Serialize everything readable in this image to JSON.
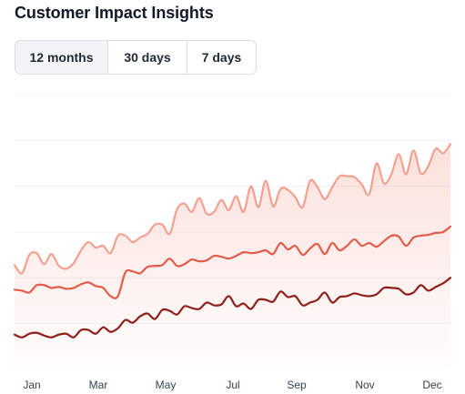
{
  "title": "Customer Impact Insights",
  "range_buttons": [
    {
      "label": "12 months",
      "active": true
    },
    {
      "label": "30 days",
      "active": false
    },
    {
      "label": "7 days",
      "active": false
    }
  ],
  "chart_data": {
    "type": "line",
    "grid": true,
    "legend": "none",
    "x_ticks": [
      "Jan",
      "Mar",
      "May",
      "Jul",
      "Sep",
      "Nov",
      "Dec"
    ],
    "ylim": [
      0,
      30
    ],
    "series": [
      {
        "color": "#f4a090",
        "fill": true,
        "values": [
          11.4,
          10.5,
          12.5,
          12.7,
          11.5,
          12.6,
          11.3,
          11.0,
          11.6,
          13.0,
          13.9,
          13.3,
          13.5,
          12.7,
          14.6,
          14.6,
          13.9,
          14.4,
          14.8,
          15.8,
          15.8,
          14.8,
          17.5,
          18.1,
          17.2,
          18.7,
          17.0,
          17.2,
          18.5,
          17.4,
          18.9,
          17.2,
          20.0,
          17.7,
          20.6,
          17.8,
          19.7,
          19.6,
          18.8,
          17.7,
          20.6,
          19.9,
          18.6,
          19.9,
          21.1,
          21.1,
          21.0,
          20.2,
          19.1,
          22.5,
          20.3,
          21.3,
          23.5,
          21.3,
          23.9,
          21.4,
          22.2,
          24.1,
          23.6,
          24.6
        ]
      },
      {
        "color": "#e25b4b",
        "fill": false,
        "values": [
          8.7,
          8.6,
          8.4,
          9.2,
          9.2,
          8.9,
          9.0,
          8.8,
          8.9,
          9.3,
          9.5,
          9.1,
          8.9,
          8.0,
          8.0,
          10.6,
          10.7,
          10.5,
          11.2,
          11.3,
          11.4,
          12.1,
          11.3,
          11.5,
          12.0,
          11.8,
          11.9,
          12.4,
          12.3,
          12.1,
          12.4,
          12.8,
          12.7,
          12.8,
          13.0,
          12.6,
          13.8,
          13.1,
          13.5,
          12.5,
          13.2,
          13.7,
          12.6,
          13.8,
          13.0,
          13.5,
          14.2,
          13.5,
          13.8,
          13.4,
          14.0,
          14.6,
          14.5,
          13.5,
          14.4,
          14.6,
          14.7,
          14.9,
          15.0,
          15.6
        ]
      },
      {
        "color": "#8f1d18",
        "fill": false,
        "values": [
          3.8,
          3.5,
          3.9,
          4.0,
          3.7,
          3.5,
          3.8,
          3.9,
          3.5,
          4.3,
          4.3,
          3.9,
          4.6,
          4.1,
          4.5,
          5.4,
          5.1,
          5.8,
          6.1,
          5.5,
          6.5,
          6.4,
          6.0,
          6.9,
          6.7,
          6.6,
          7.3,
          7.0,
          7.1,
          8.0,
          6.9,
          7.2,
          6.6,
          7.6,
          7.6,
          7.4,
          8.5,
          7.9,
          8.0,
          7.0,
          7.3,
          7.6,
          8.4,
          7.3,
          7.9,
          8.0,
          8.3,
          8.1,
          8.0,
          8.2,
          8.9,
          8.9,
          8.8,
          8.2,
          8.4,
          9.2,
          8.6,
          9.0,
          9.4,
          10.0
        ]
      }
    ]
  }
}
